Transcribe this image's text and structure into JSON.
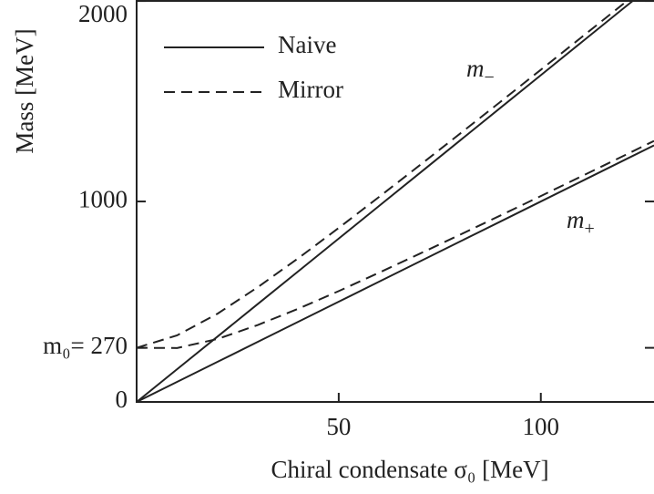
{
  "chart_data": {
    "type": "line",
    "x_label": "Chiral condensate σ₀ [MeV]",
    "y_label": "Mass [MeV]",
    "x": [
      0,
      10,
      20,
      30,
      40,
      50,
      60,
      70,
      80,
      90,
      100,
      110,
      120,
      128
    ],
    "series": [
      {
        "color": "#222222",
        "dash": false,
        "values": [
          0,
          163,
          326,
          489,
          652,
          815,
          978,
          1141,
          1304,
          1467,
          1630,
          1793,
          1956,
          2086
        ]
      },
      {
        "color": "#222222",
        "dash": false,
        "values": [
          0,
          100,
          200,
          300,
          400,
          500,
          600,
          700,
          800,
          900,
          1000,
          1100,
          1200,
          1280
        ]
      },
      {
        "color": "#222222",
        "dash": true,
        "values": [
          270,
          332,
          440,
          573,
          717,
          868,
          1023,
          1180,
          1338,
          1497,
          1657,
          1818,
          1979,
          2108
        ]
      },
      {
        "color": "#222222",
        "dash": true,
        "values": [
          270,
          269,
          314,
          384,
          465,
          553,
          645,
          739,
          834,
          930,
          1027,
          1125,
          1223,
          1302
        ]
      }
    ],
    "legend": [
      {
        "label": "Naive",
        "dash": false
      },
      {
        "label": "Mirror",
        "dash": true
      }
    ],
    "annotations": [
      {
        "base": "m",
        "sub": "−"
      },
      {
        "base": "m",
        "sub": "+"
      }
    ],
    "xlim": [
      0,
      128
    ],
    "ylim": [
      0,
      2005
    ],
    "xticks": [
      50,
      100
    ],
    "yticks": [
      0,
      {
        "value": 270,
        "label": "m₀= 270"
      },
      1000,
      2000
    ]
  }
}
